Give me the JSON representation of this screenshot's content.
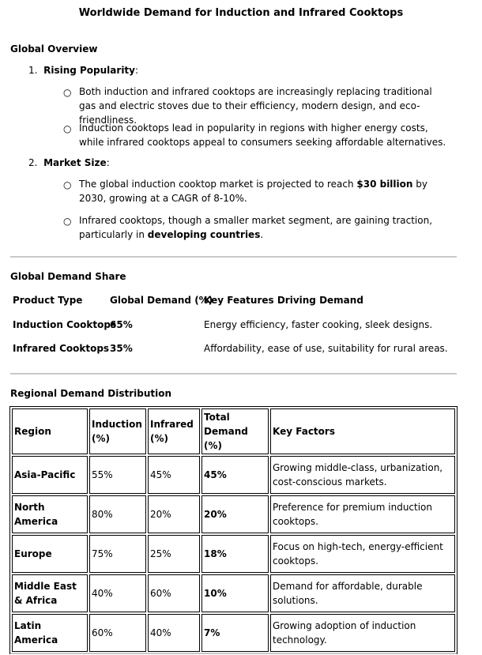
{
  "title": "Worldwide Demand for Induction and Infrared Cooktops",
  "overview": {
    "heading": "Global Overview",
    "items": [
      {
        "num": "1.",
        "label": "Rising Popularity",
        "colon": ":",
        "bullets": [
          "Both induction and infrared cooktops are increasingly replacing traditional gas and electric stoves due to their efficiency, modern design, and eco-friendliness.",
          "Induction cooktops lead in popularity in regions with higher energy costs, while infrared cooktops appeal to consumers seeking affordable alternatives."
        ]
      },
      {
        "num": "2.",
        "label": "Market Size",
        "colon": ":",
        "b1_pre": "The global induction cooktop market is projected to reach ",
        "b1_bold": "$30 billion",
        "b1_post": " by 2030, growing at a CAGR of 8-10%.",
        "b2_pre": "Infrared cooktops, though a smaller market segment, are gaining traction, particularly in ",
        "b2_bold": "developing countries",
        "b2_post": "."
      }
    ]
  },
  "share": {
    "heading": "Global Demand Share",
    "headers": [
      "Product Type",
      "Global Demand (%)",
      "Key Features Driving Demand"
    ],
    "rows": [
      [
        "Induction Cooktops",
        "65%",
        "Energy efficiency, faster cooking, sleek designs."
      ],
      [
        "Infrared Cooktops",
        "35%",
        "Affordability, ease of use, suitability for rural areas."
      ]
    ]
  },
  "regional": {
    "heading": "Regional Demand Distribution",
    "headers": [
      "Region",
      "Induction (%)",
      "Infrared (%)",
      "Total Demand (%)",
      "Key Factors"
    ],
    "rows": [
      [
        "Asia-Pacific",
        "55%",
        "45%",
        "45%",
        "Growing middle-class, urbanization, cost-conscious markets."
      ],
      [
        "North America",
        "80%",
        "20%",
        "20%",
        "Preference for premium induction cooktops."
      ],
      [
        "Europe",
        "75%",
        "25%",
        "18%",
        "Focus on high-tech, energy-efficient cooktops."
      ],
      [
        "Middle East & Africa",
        "40%",
        "60%",
        "10%",
        "Demand for affordable, durable solutions."
      ],
      [
        "Latin America",
        "60%",
        "40%",
        "7%",
        "Growing adoption of induction technology."
      ]
    ]
  }
}
